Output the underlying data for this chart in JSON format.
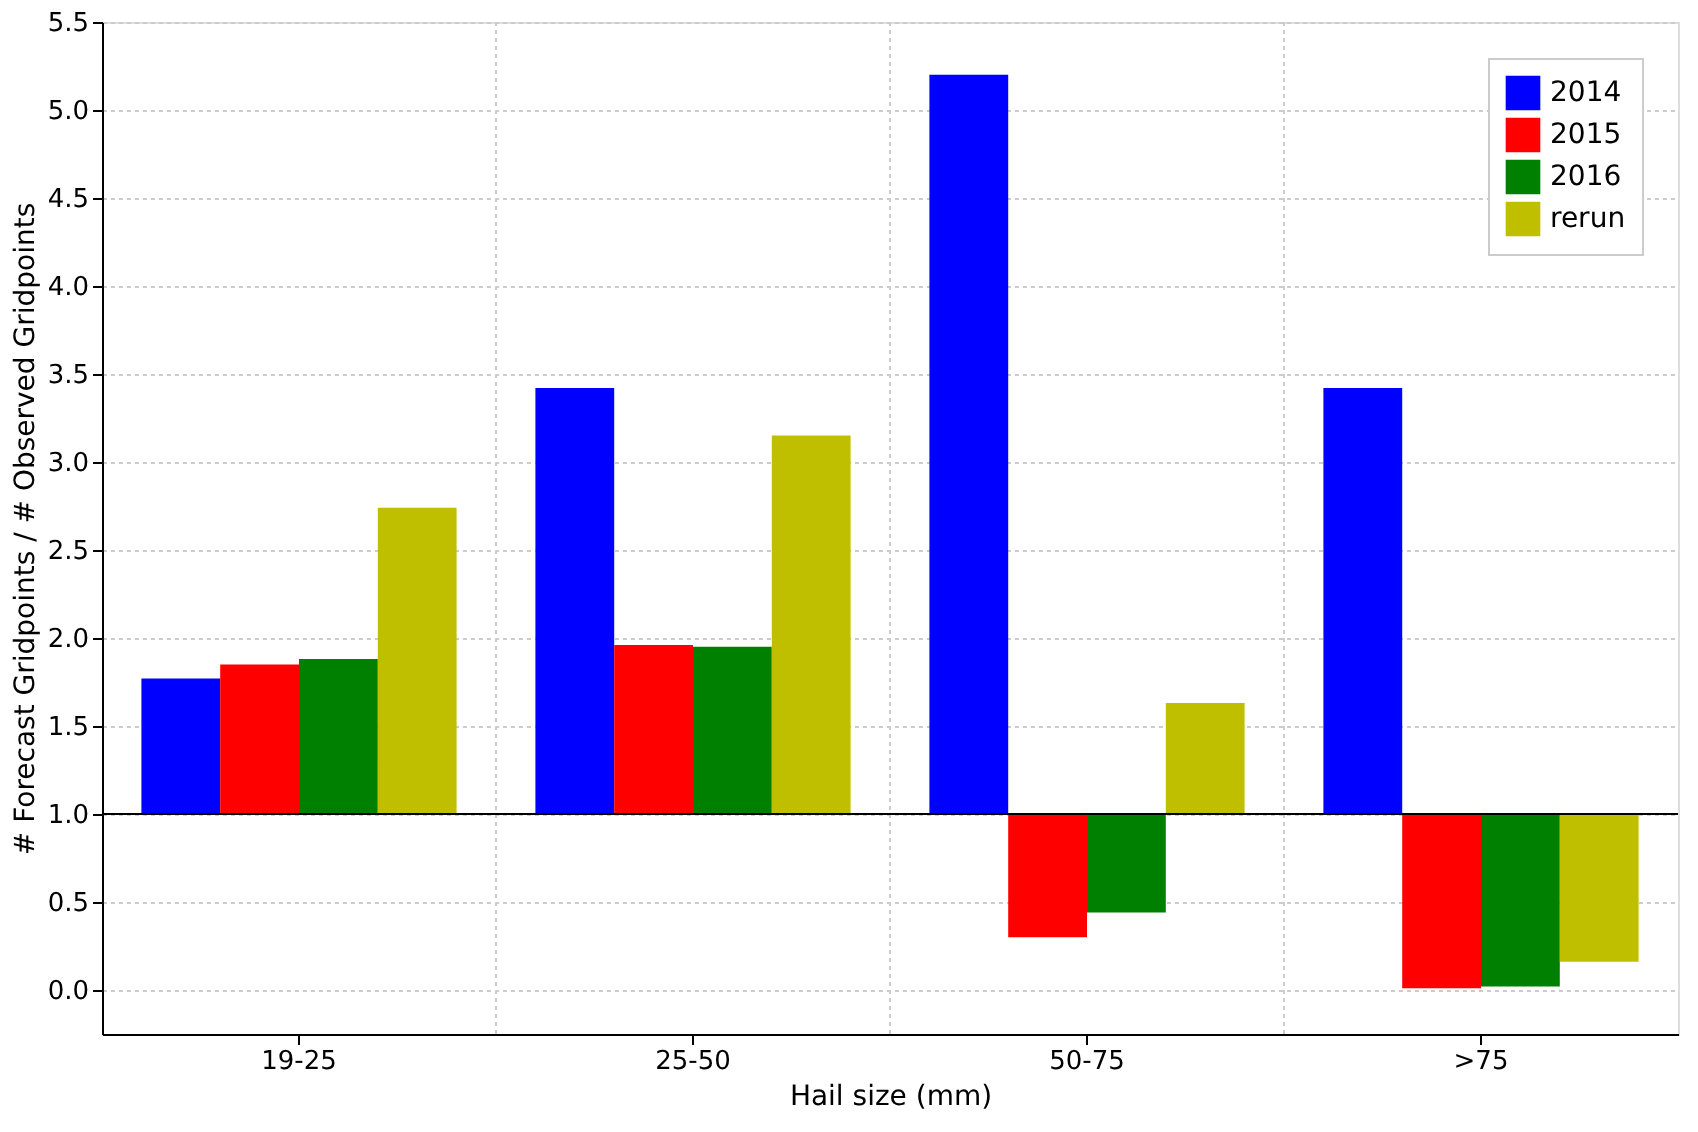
{
  "chart_data": {
    "type": "bar",
    "xlabel": "Hail size (mm)",
    "ylabel": "# Forecast Gridpoints / # Observed Gridpoints",
    "categories": [
      "19-25",
      "25-50",
      "50-75",
      ">75"
    ],
    "series": [
      {
        "name": "2014",
        "color": "#0000ff",
        "base": [
          1,
          1,
          1,
          1
        ],
        "values": [
          0.77,
          2.42,
          4.2,
          2.42
        ]
      },
      {
        "name": "2015",
        "color": "#ff0000",
        "base": [
          1,
          1,
          1,
          1
        ],
        "values": [
          0.85,
          0.96,
          -0.7,
          -0.99
        ]
      },
      {
        "name": "2016",
        "color": "#008000",
        "base": [
          1,
          1,
          1,
          1
        ],
        "values": [
          0.88,
          0.95,
          -0.56,
          -0.98
        ]
      },
      {
        "name": "rerun",
        "color": "#bfbf00",
        "base": [
          1,
          1,
          1,
          1
        ],
        "values": [
          1.74,
          2.15,
          0.63,
          -0.84
        ]
      }
    ],
    "ylim": [
      -0.25,
      5.5
    ],
    "yticks": [
      {
        "value": 0,
        "label": "0.0"
      },
      0.5,
      {
        "value": 1,
        "label": "1.0"
      },
      1.5,
      {
        "value": 2,
        "label": "2.0"
      },
      2.5,
      {
        "value": 3,
        "label": "3.0"
      },
      3.5,
      {
        "value": 4,
        "label": "4.0"
      },
      4.5,
      {
        "value": 5,
        "label": "5.0"
      },
      5.5
    ],
    "ref_lines": [
      {
        "axis": "y",
        "value": 1,
        "color": "#000000"
      }
    ],
    "grid": true,
    "legend": "top right"
  }
}
